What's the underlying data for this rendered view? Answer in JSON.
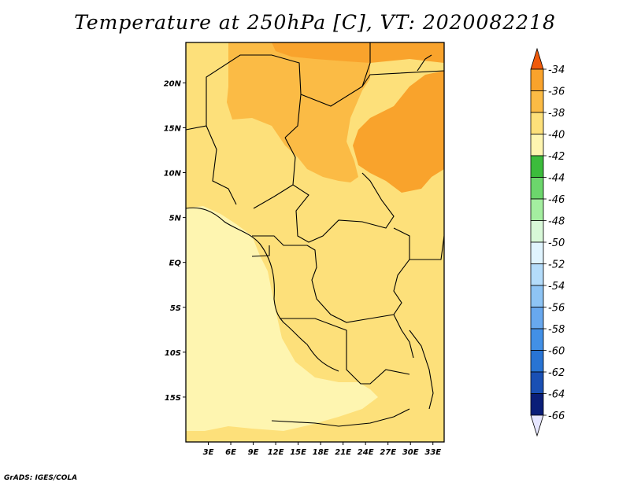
{
  "title": "Temperature at 250hPa [C], VT: 2020082218",
  "credit": "GrADS: IGES/COLA",
  "map": {
    "lon_range": [
      0,
      34.5
    ],
    "lat_range": [
      -20,
      24.5
    ],
    "lat_ticks": [
      {
        "value": 20,
        "label": "20N"
      },
      {
        "value": 15,
        "label": "15N"
      },
      {
        "value": 10,
        "label": "10N"
      },
      {
        "value": 5,
        "label": "5N"
      },
      {
        "value": 0,
        "label": "EQ"
      },
      {
        "value": -5,
        "label": "5S"
      },
      {
        "value": -10,
        "label": "10S"
      },
      {
        "value": -15,
        "label": "15S"
      }
    ],
    "lon_ticks": [
      {
        "value": 3,
        "label": "3E"
      },
      {
        "value": 6,
        "label": "6E"
      },
      {
        "value": 9,
        "label": "9E"
      },
      {
        "value": 12,
        "label": "12E"
      },
      {
        "value": 15,
        "label": "15E"
      },
      {
        "value": 18,
        "label": "18E"
      },
      {
        "value": 21,
        "label": "21E"
      },
      {
        "value": 24,
        "label": "24E"
      },
      {
        "value": 27,
        "label": "27E"
      },
      {
        "value": 30,
        "label": "30E"
      },
      {
        "value": 33,
        "label": "33E"
      }
    ],
    "regions": [
      {
        "name": "warm-ne",
        "level": -37,
        "color": "#f9a32c"
      },
      {
        "name": "warm-nc",
        "level": -39,
        "color": "#fbbb45"
      },
      {
        "name": "mid",
        "level": -41,
        "color": "#fde07a"
      },
      {
        "name": "cool-sw",
        "level": -43,
        "color": "#fef5b0"
      }
    ]
  },
  "colorbar": {
    "labels": [
      "-34",
      "-36",
      "-38",
      "-40",
      "-42",
      "-44",
      "-46",
      "-48",
      "-50",
      "-52",
      "-54",
      "-56",
      "-58",
      "-60",
      "-62",
      "-64",
      "-66"
    ],
    "top_arrow_color": "#f05a0a",
    "bottom_arrow_color": "#e6e6ff",
    "colors": [
      "#f5780c",
      "#f9a32c",
      "#fbbb45",
      "#fde07a",
      "#fef5b0",
      "#3cbc3c",
      "#6cd66c",
      "#a4eea0",
      "#d8f8d8",
      "#e0f4fe",
      "#b4dcfa",
      "#8ec4f4",
      "#68a8ee",
      "#4290e6",
      "#2874d4",
      "#1a50b4",
      "#0a1e78"
    ]
  }
}
